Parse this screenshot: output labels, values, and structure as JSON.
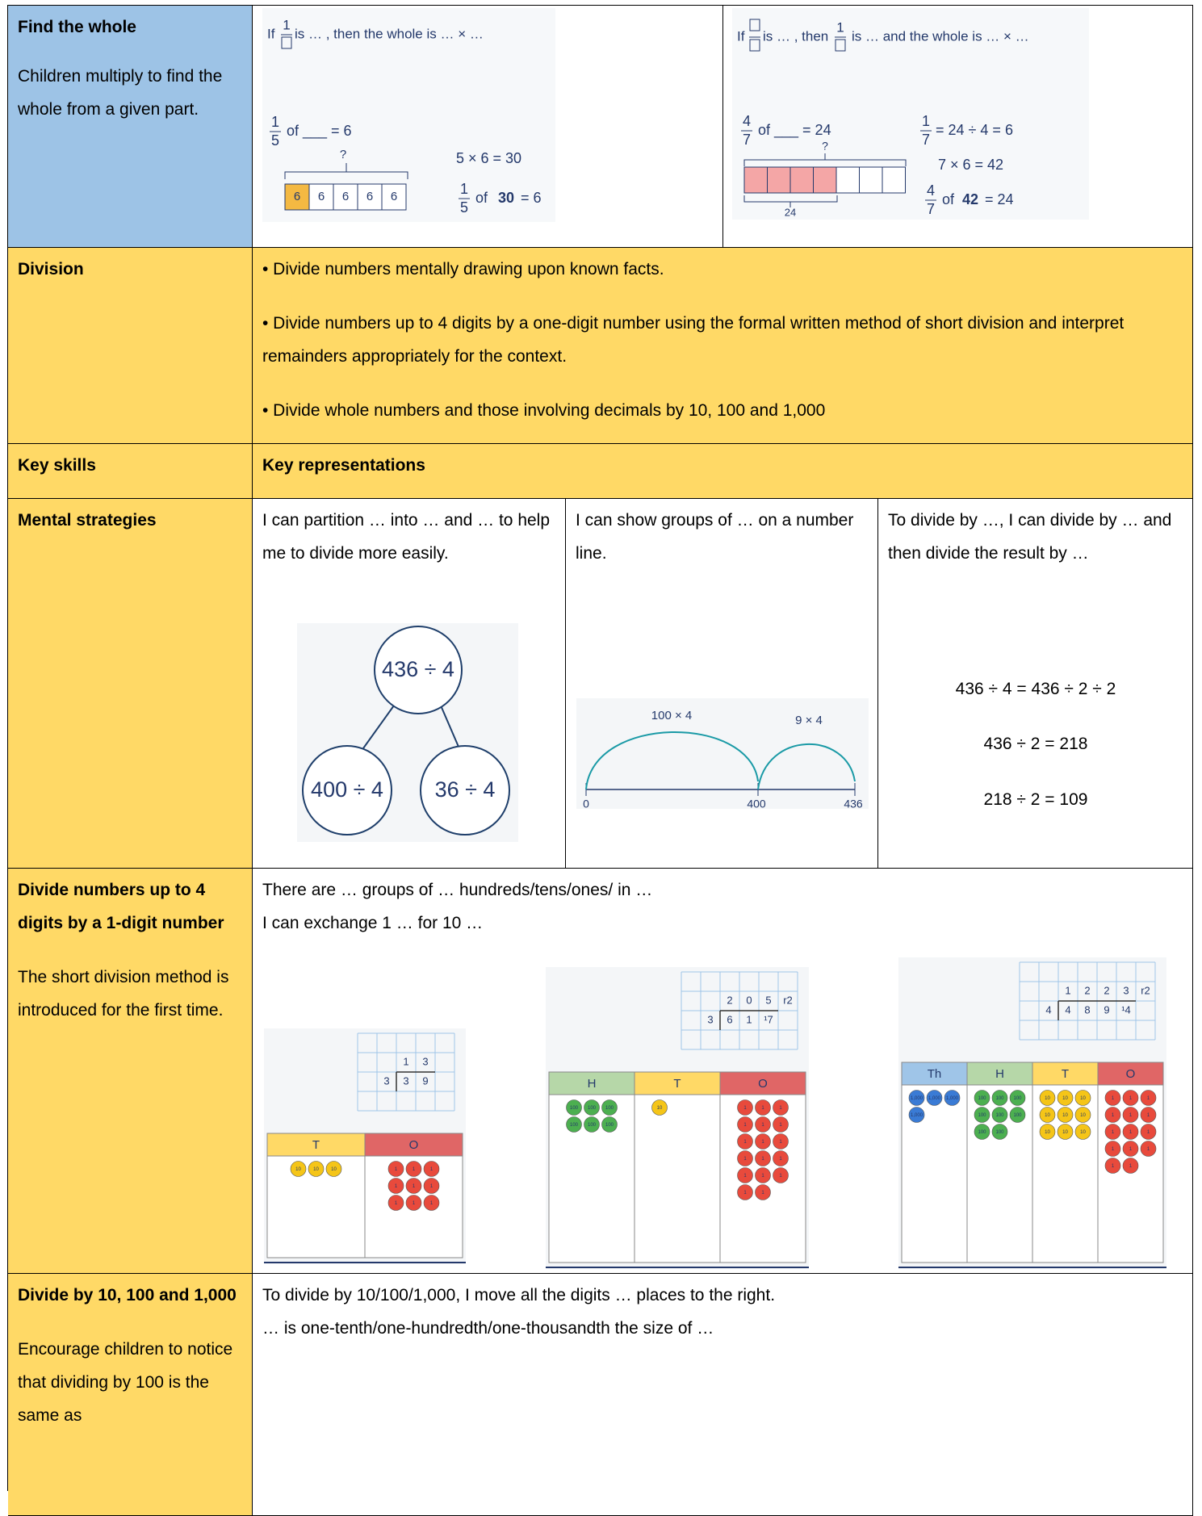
{
  "rows": [
    {
      "skill": "Find the whole",
      "note": "Children multiply to find the whole from a given part.",
      "left_diagram": {
        "prompt": [
          "If",
          "1",
          "is … , then the whole is … × …"
        ],
        "equation": [
          "1",
          "5",
          "of ___ = 6"
        ],
        "question": "?",
        "bar": [
          "6",
          "6",
          "6",
          "6",
          "6"
        ],
        "step": "5 × 6 = 30",
        "answer": [
          "1",
          "5",
          "of",
          "30",
          "= 6"
        ]
      },
      "right_diagram": {
        "prompt": [
          "If",
          "is … , then",
          "1",
          "is … and the whole is … × …"
        ],
        "equation": [
          "4",
          "7",
          "of ___ = 24"
        ],
        "question": "?",
        "bar_label": "24",
        "steps": [
          "1",
          "7",
          "= 24 ÷ 4 = 6",
          "7 × 6 = 42"
        ],
        "answer": [
          "4",
          "7",
          "of",
          "42",
          "= 24"
        ]
      }
    },
    {
      "skill": "Division",
      "bullets": [
        "• Divide numbers mentally drawing upon known facts.",
        "• Divide numbers up to 4 digits by a one-digit number using the formal written method of short division and interpret remainders appropriately for the context.",
        "• Divide whole numbers and those involving decimals by 10, 100 and 1,000"
      ]
    },
    {
      "skill": "Key skills",
      "content": "Key representations"
    },
    {
      "skill": "Mental strategies",
      "cells": [
        {
          "text": "I can partition … into … and … to help me to divide more easily.",
          "tree": [
            "436 ÷ 4",
            "400 ÷ 4",
            "36 ÷ 4"
          ]
        },
        {
          "text": "I can show groups of … on a number line.",
          "jumps": [
            "100 × 4",
            "9 × 4"
          ],
          "marks": [
            "0",
            "400",
            "436"
          ]
        },
        {
          "text": "To divide by …, I can divide by … and then divide the result by …",
          "equations": [
            "436 ÷ 4 = 436 ÷ 2 ÷ 2",
            "436 ÷ 2 = 218",
            "218 ÷ 2 = 109"
          ]
        }
      ]
    },
    {
      "skill": "Divide numbers up to 4 digits by a 1-digit number",
      "note": "The short division method is introduced for the first time.",
      "sentences": [
        "There are … groups of … hundreds/tens/ones/ in …",
        "I can exchange 1 … for 10 …"
      ],
      "diagrams": [
        {
          "quotient": [
            "1",
            "3"
          ],
          "divisor": "3",
          "dividend": [
            "3",
            "9"
          ],
          "columns": [
            "T",
            "O"
          ],
          "counters": [
            "10",
            "1"
          ]
        },
        {
          "quotient": [
            "2",
            "0",
            "5",
            "r2"
          ],
          "divisor": "3",
          "dividend": [
            "6",
            "1",
            "¹7"
          ],
          "columns": [
            "H",
            "T",
            "O"
          ],
          "counters": [
            "100",
            "10",
            "1"
          ]
        },
        {
          "quotient": [
            "1",
            "2",
            "2",
            "3",
            "r2"
          ],
          "divisor": "4",
          "dividend": [
            "4",
            "8",
            "9",
            "¹4"
          ],
          "columns": [
            "Th",
            "H",
            "T",
            "O"
          ],
          "counters": [
            "1,000",
            "100",
            "10",
            "1"
          ]
        }
      ]
    },
    {
      "skill": "Divide by 10, 100 and 1,000",
      "note": "Encourage children to notice that dividing by 100 is the same as",
      "sentences": [
        "To divide by 10/100/1,000, I move all the digits … places to the right.",
        "… is one-tenth/one-hundredth/one-thousandth the size of …"
      ]
    }
  ]
}
